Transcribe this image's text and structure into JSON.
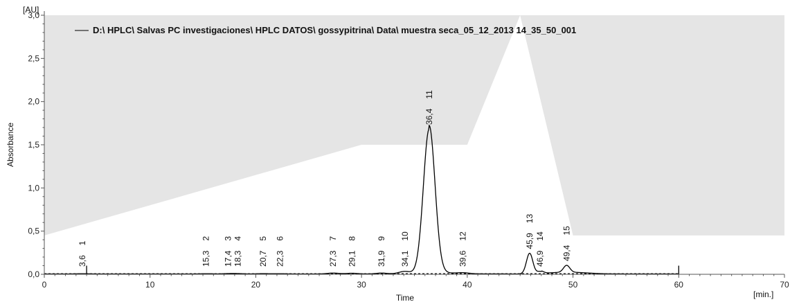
{
  "chart_data": {
    "type": "line",
    "title": "",
    "xlabel": "Time",
    "xunit": "[min.]",
    "ylabel": "Absorbance",
    "yunit": "[AU]",
    "xlim": [
      0,
      70
    ],
    "ylim": [
      0,
      3.0
    ],
    "xticks": [
      0,
      10,
      20,
      30,
      40,
      50,
      60,
      70
    ],
    "xtick_labels": [
      "0",
      "10",
      "20",
      "30",
      "40",
      "50",
      "60",
      "70"
    ],
    "yticks": [
      0,
      0.5,
      1.0,
      1.5,
      2.0,
      2.5,
      3.0
    ],
    "ytick_labels": [
      "0,0",
      "0,5",
      "1,0",
      "1,5",
      "2,0",
      "2,5",
      "3,0"
    ],
    "grid": false,
    "legend": {
      "position": "top",
      "label": "D:\\ HPLC\\ Salvas PC investigaciones\\ HPLC DATOS\\ gossypitrina\\ Data\\ muestra seca_05_12_2013 14_35_50_001"
    },
    "colors": {
      "trace": "#000000",
      "gradient_fill": "#e5e5e5",
      "baseline": "#000000",
      "axis": "#555555"
    },
    "gradient_profile": {
      "x": [
        0,
        30,
        40,
        45,
        50,
        70
      ],
      "y": [
        0.45,
        1.5,
        1.5,
        3.0,
        0.45,
        0.45
      ]
    },
    "peaks": [
      {
        "number": "1",
        "time": 3.6,
        "time_label": "3,6",
        "height": 0.003
      },
      {
        "number": "2",
        "time": 15.3,
        "time_label": "15,3",
        "height": 0.003
      },
      {
        "number": "3",
        "time": 17.4,
        "time_label": "17,4",
        "height": 0.004
      },
      {
        "number": "4",
        "time": 18.3,
        "time_label": "18,3",
        "height": 0.004
      },
      {
        "number": "5",
        "time": 20.7,
        "time_label": "20,7",
        "height": 0.004
      },
      {
        "number": "6",
        "time": 22.3,
        "time_label": "22,3",
        "height": 0.003
      },
      {
        "number": "7",
        "time": 27.3,
        "time_label": "27,3",
        "height": 0.01
      },
      {
        "number": "8",
        "time": 29.1,
        "time_label": "29,1",
        "height": 0.008
      },
      {
        "number": "9",
        "time": 31.9,
        "time_label": "31,9",
        "height": 0.01
      },
      {
        "number": "10",
        "time": 34.1,
        "time_label": "34,1",
        "height": 0.03
      },
      {
        "number": "11",
        "time": 36.4,
        "time_label": "36,4",
        "height": 1.68
      },
      {
        "number": "12",
        "time": 39.6,
        "time_label": "39,6",
        "height": 0.01
      },
      {
        "number": "13",
        "time": 45.9,
        "time_label": "45,9",
        "height": 0.24
      },
      {
        "number": "14",
        "time": 46.9,
        "time_label": "46,9",
        "height": 0.03
      },
      {
        "number": "15",
        "time": 49.4,
        "time_label": "49,4",
        "height": 0.08
      }
    ],
    "markers": [
      {
        "x": 4.0,
        "y": 0.1
      },
      {
        "x": 60.0,
        "y": 0.1
      }
    ],
    "baseline_end": 60
  }
}
